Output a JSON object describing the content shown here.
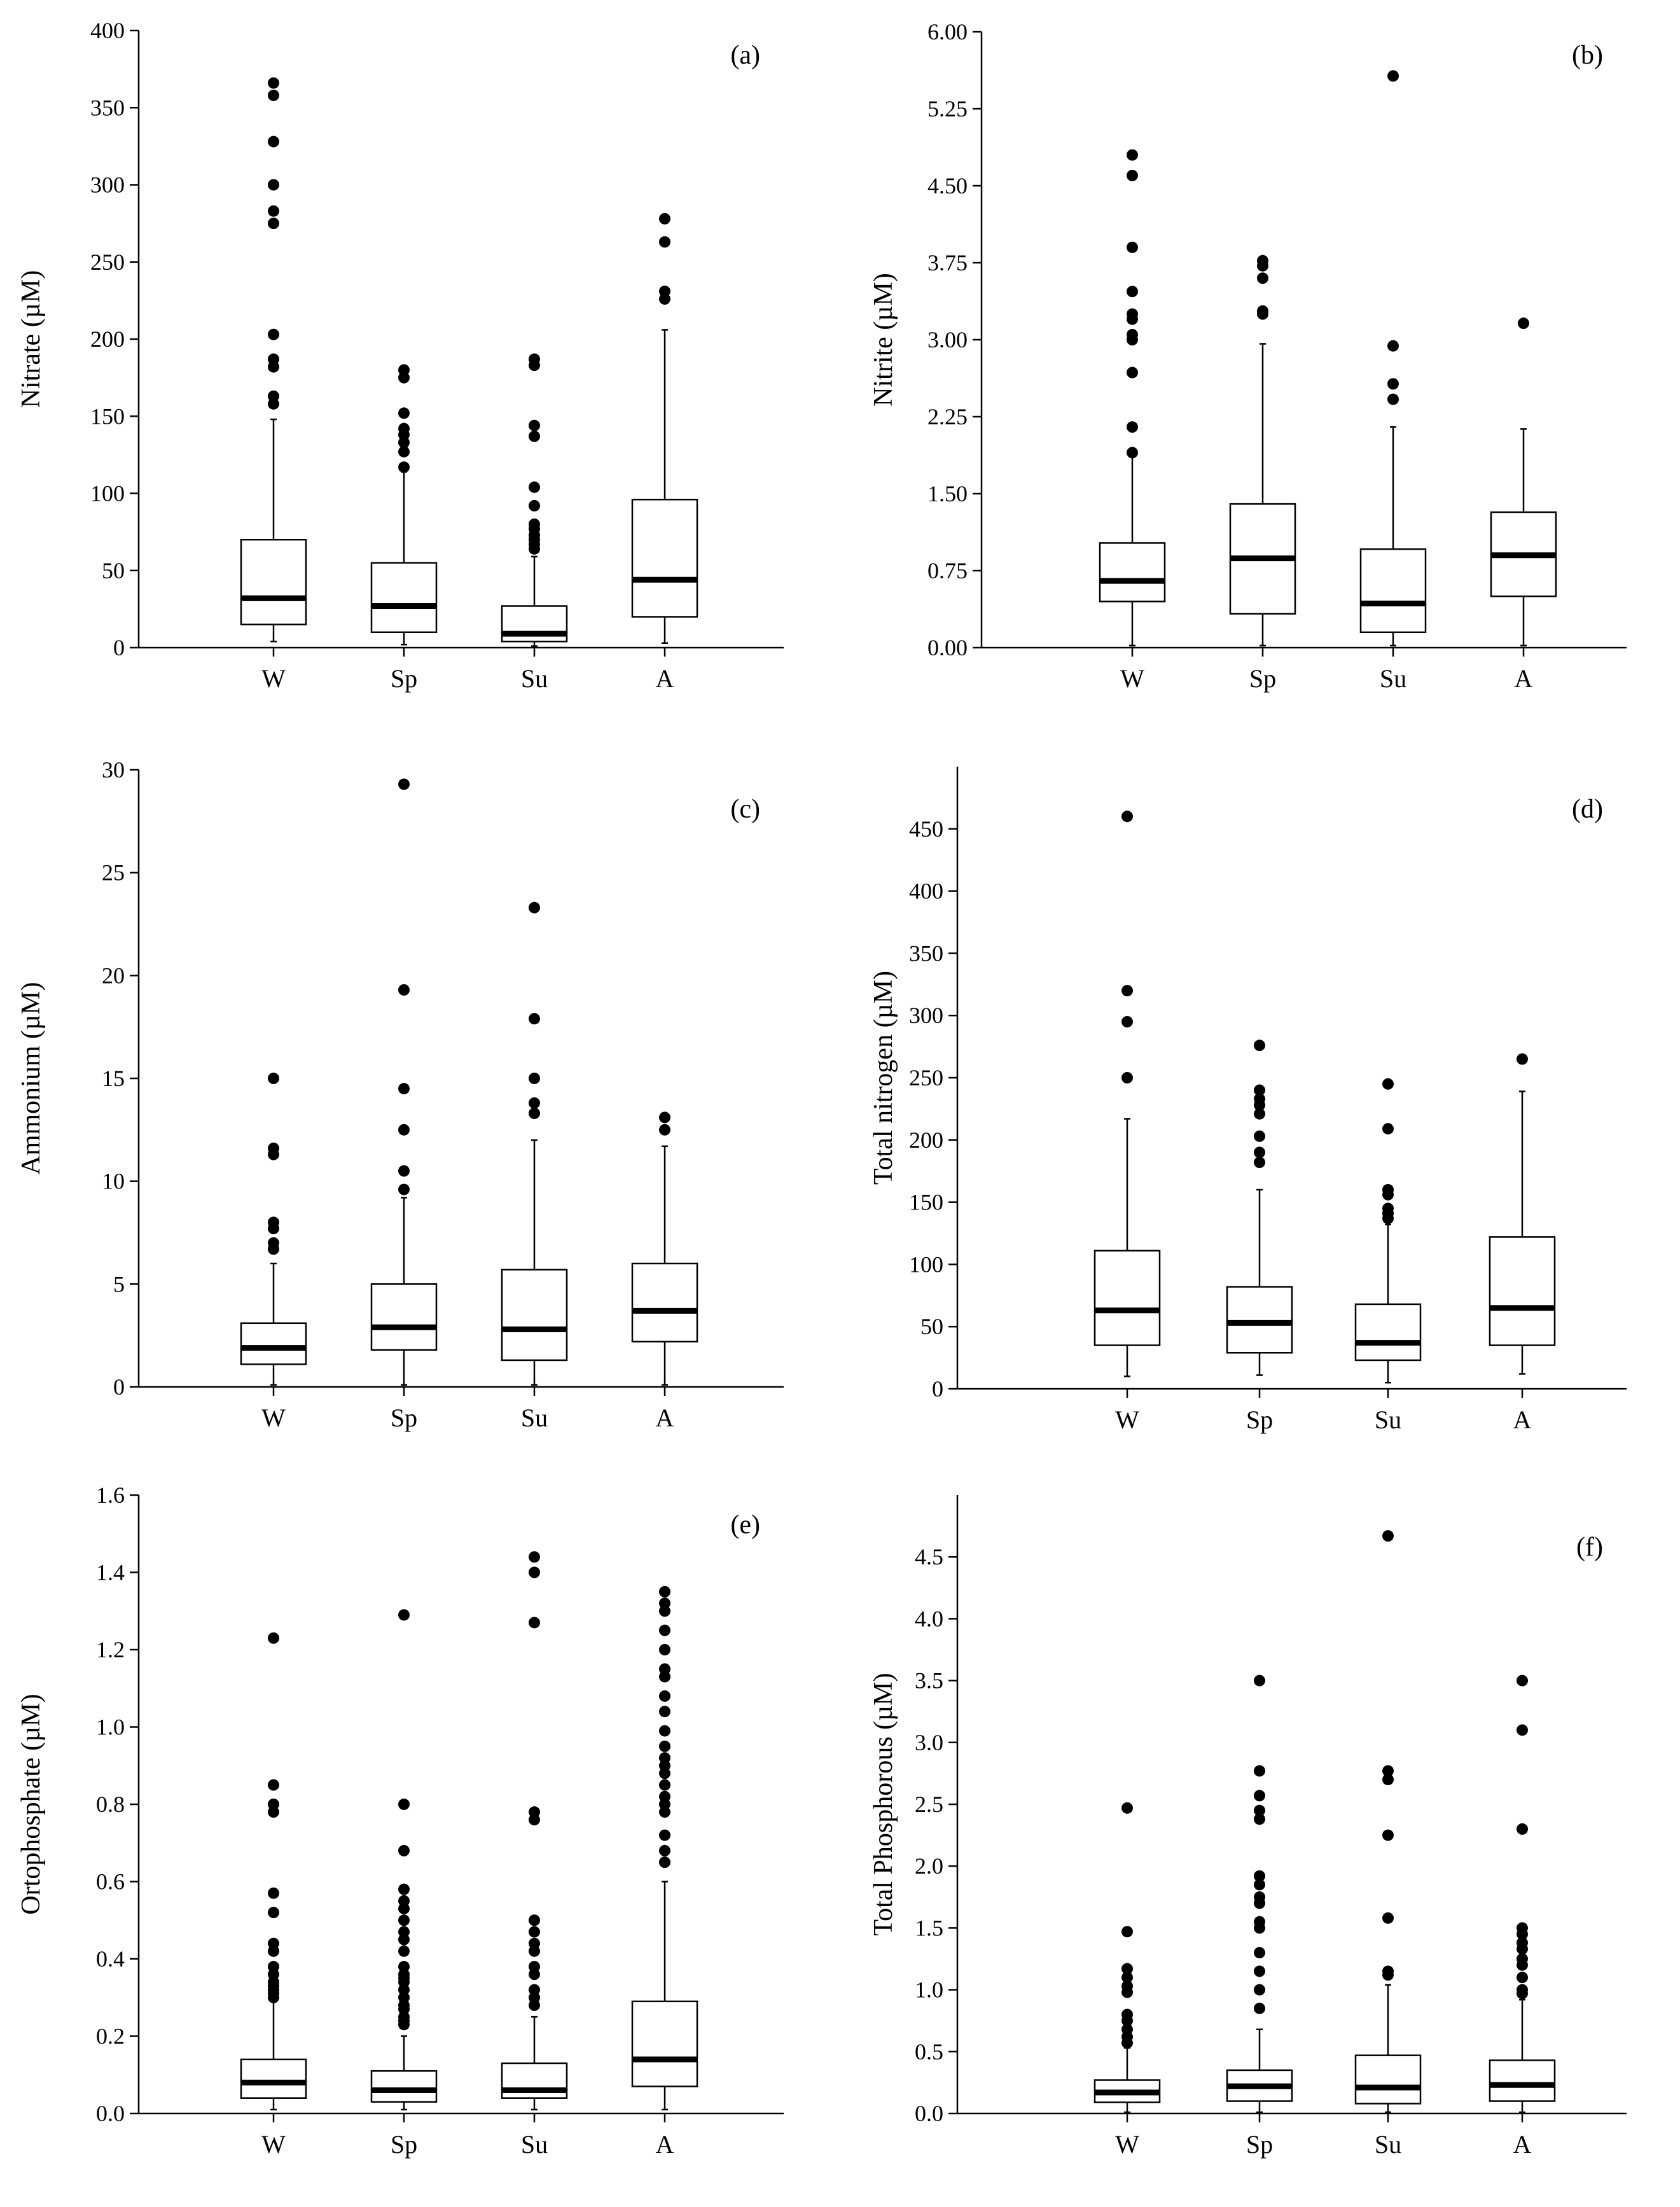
{
  "chart_data": [
    {
      "type": "box",
      "panel_label": "(a)",
      "ylabel": "Nitrate (µM)",
      "ylim": [
        0,
        400
      ],
      "yticks": [
        "0",
        "50",
        "100",
        "150",
        "200",
        "250",
        "300",
        "350",
        "400"
      ],
      "categories": [
        "W",
        "Sp",
        "Su",
        "A"
      ],
      "boxes": [
        {
          "min": 4,
          "q1": 15,
          "median": 32,
          "q3": 70,
          "max": 148,
          "outliers": [
            158,
            163,
            182,
            187,
            203,
            275,
            283,
            300,
            328,
            358,
            366
          ]
        },
        {
          "min": 2,
          "q1": 10,
          "median": 27,
          "q3": 55,
          "max": 114,
          "outliers": [
            117,
            127,
            133,
            138,
            142,
            152,
            175,
            180
          ]
        },
        {
          "min": 1,
          "q1": 4,
          "median": 9,
          "q3": 27,
          "max": 59,
          "outliers": [
            64,
            67,
            70,
            73,
            77,
            80,
            92,
            104,
            137,
            144,
            183,
            187
          ]
        },
        {
          "min": 3,
          "q1": 20,
          "median": 44,
          "q3": 96,
          "max": 206,
          "outliers": [
            226,
            231,
            263,
            278
          ]
        }
      ]
    },
    {
      "type": "box",
      "panel_label": "(b)",
      "ylabel": "Nitrite (µM)",
      "ylim": [
        0,
        6
      ],
      "yticks": [
        "0.00",
        "0.75",
        "1.50",
        "2.25",
        "3.00",
        "3.75",
        "4.50",
        "5.25",
        "6.00"
      ],
      "categories": [
        "W",
        "Sp",
        "Su",
        "A"
      ],
      "boxes": [
        {
          "min": 0.02,
          "q1": 0.45,
          "median": 0.65,
          "q3": 1.02,
          "max": 1.87,
          "outliers": [
            1.9,
            2.15,
            2.68,
            3.0,
            3.05,
            3.2,
            3.25,
            3.47,
            3.9,
            4.6,
            4.8
          ]
        },
        {
          "min": 0.02,
          "q1": 0.33,
          "median": 0.87,
          "q3": 1.4,
          "max": 2.96,
          "outliers": [
            3.25,
            3.28,
            3.6,
            3.72,
            3.77
          ]
        },
        {
          "min": 0.02,
          "q1": 0.15,
          "median": 0.43,
          "q3": 0.96,
          "max": 2.15,
          "outliers": [
            2.42,
            2.57,
            2.94,
            5.57
          ]
        },
        {
          "min": 0.02,
          "q1": 0.5,
          "median": 0.9,
          "q3": 1.32,
          "max": 2.13,
          "outliers": [
            3.16
          ]
        }
      ]
    },
    {
      "type": "box",
      "panel_label": "(c)",
      "ylabel": "Ammonium (µM)",
      "ylim": [
        0,
        30
      ],
      "yticks": [
        "0",
        "5",
        "10",
        "15",
        "20",
        "25",
        "30"
      ],
      "categories": [
        "W",
        "Sp",
        "Su",
        "A"
      ],
      "boxes": [
        {
          "min": 0.1,
          "q1": 1.1,
          "median": 1.9,
          "q3": 3.1,
          "max": 6.0,
          "outliers": [
            6.7,
            7.0,
            7.7,
            8.0,
            11.3,
            11.6,
            15.0
          ]
        },
        {
          "min": 0.1,
          "q1": 1.8,
          "median": 2.9,
          "q3": 5.0,
          "max": 9.2,
          "outliers": [
            9.6,
            10.5,
            12.5,
            14.5,
            19.3,
            29.3
          ]
        },
        {
          "min": 0.1,
          "q1": 1.3,
          "median": 2.8,
          "q3": 5.7,
          "max": 12.0,
          "outliers": [
            13.3,
            13.8,
            15.0,
            17.9,
            23.3
          ]
        },
        {
          "min": 0.1,
          "q1": 2.2,
          "median": 3.7,
          "q3": 6.0,
          "max": 11.7,
          "outliers": [
            12.5,
            13.1
          ]
        }
      ]
    },
    {
      "type": "box",
      "panel_label": "(d)",
      "ylabel": "Total nitrogen (µM)",
      "ylim": [
        0,
        500
      ],
      "yticks": [
        "0",
        "50",
        "100",
        "150",
        "200",
        "250",
        "300",
        "350",
        "400",
        "450"
      ],
      "categories": [
        "W",
        "Sp",
        "Su",
        "A"
      ],
      "boxes": [
        {
          "min": 10,
          "q1": 35,
          "median": 63,
          "q3": 111,
          "max": 217,
          "outliers": [
            250,
            295,
            320,
            460
          ]
        },
        {
          "min": 11,
          "q1": 29,
          "median": 53,
          "q3": 82,
          "max": 160,
          "outliers": [
            182,
            190,
            203,
            221,
            228,
            233,
            240,
            276
          ]
        },
        {
          "min": 5,
          "q1": 23,
          "median": 37,
          "q3": 68,
          "max": 132,
          "outliers": [
            137,
            141,
            145,
            156,
            160,
            209,
            245
          ]
        },
        {
          "min": 12,
          "q1": 35,
          "median": 65,
          "q3": 122,
          "max": 239,
          "outliers": [
            265
          ]
        }
      ]
    },
    {
      "type": "box",
      "panel_label": "(e)",
      "ylabel": "Ortophosphate (µM)",
      "ylim": [
        0,
        1.6
      ],
      "yticks": [
        "0.0",
        "0.2",
        "0.4",
        "0.6",
        "0.8",
        "1.0",
        "1.2",
        "1.4",
        "1.6"
      ],
      "categories": [
        "W",
        "Sp",
        "Su",
        "A"
      ],
      "boxes": [
        {
          "min": 0.01,
          "q1": 0.04,
          "median": 0.08,
          "q3": 0.14,
          "max": 0.29,
          "outliers": [
            0.3,
            0.31,
            0.32,
            0.33,
            0.34,
            0.36,
            0.38,
            0.42,
            0.44,
            0.52,
            0.57,
            0.78,
            0.8,
            0.85,
            1.23
          ]
        },
        {
          "min": 0.01,
          "q1": 0.03,
          "median": 0.06,
          "q3": 0.11,
          "max": 0.2,
          "outliers": [
            0.23,
            0.24,
            0.25,
            0.27,
            0.28,
            0.3,
            0.32,
            0.34,
            0.35,
            0.36,
            0.38,
            0.42,
            0.45,
            0.47,
            0.5,
            0.53,
            0.55,
            0.58,
            0.68,
            0.8,
            1.29
          ]
        },
        {
          "min": 0.01,
          "q1": 0.04,
          "median": 0.06,
          "q3": 0.13,
          "max": 0.25,
          "outliers": [
            0.28,
            0.3,
            0.32,
            0.36,
            0.38,
            0.42,
            0.44,
            0.47,
            0.5,
            0.76,
            0.78,
            1.27,
            1.4,
            1.44
          ]
        },
        {
          "min": 0.01,
          "q1": 0.07,
          "median": 0.14,
          "q3": 0.29,
          "max": 0.6,
          "outliers": [
            0.65,
            0.68,
            0.72,
            0.78,
            0.8,
            0.82,
            0.85,
            0.88,
            0.9,
            0.92,
            0.95,
            0.99,
            1.04,
            1.08,
            1.13,
            1.15,
            1.2,
            1.25,
            1.3,
            1.32,
            1.35
          ]
        }
      ]
    },
    {
      "type": "box",
      "panel_label": "(f)",
      "ylabel": "Total Phosphorous (µM)",
      "ylim": [
        0,
        5
      ],
      "yticks": [
        "0.0",
        "0.5",
        "1.0",
        "1.5",
        "2.0",
        "2.5",
        "3.0",
        "3.5",
        "4.0",
        "4.5"
      ],
      "categories": [
        "W",
        "Sp",
        "Su",
        "A"
      ],
      "boxes": [
        {
          "min": 0.01,
          "q1": 0.09,
          "median": 0.17,
          "q3": 0.27,
          "max": 0.53,
          "outliers": [
            0.57,
            0.62,
            0.68,
            0.75,
            0.8,
            0.98,
            1.03,
            1.1,
            1.17,
            1.47,
            2.47
          ]
        },
        {
          "min": 0.01,
          "q1": 0.1,
          "median": 0.22,
          "q3": 0.35,
          "max": 0.68,
          "outliers": [
            0.85,
            1.0,
            1.15,
            1.3,
            1.5,
            1.55,
            1.7,
            1.75,
            1.85,
            1.92,
            2.38,
            2.45,
            2.57,
            2.77,
            3.5
          ]
        },
        {
          "min": 0.01,
          "q1": 0.08,
          "median": 0.21,
          "q3": 0.47,
          "max": 1.04,
          "outliers": [
            1.12,
            1.15,
            1.58,
            2.25,
            2.7,
            2.77,
            4.67
          ]
        },
        {
          "min": 0.01,
          "q1": 0.1,
          "median": 0.23,
          "q3": 0.43,
          "max": 0.92,
          "outliers": [
            0.97,
            1.0,
            1.1,
            1.2,
            1.25,
            1.33,
            1.38,
            1.45,
            1.5,
            2.3,
            3.1,
            3.5
          ]
        }
      ]
    }
  ]
}
